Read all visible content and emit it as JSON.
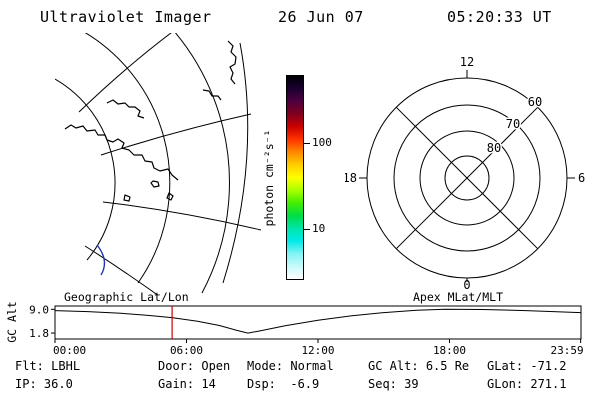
{
  "header": {
    "title": "Ultraviolet Imager",
    "date": "26 Jun 07",
    "time": "05:20:33 UT"
  },
  "geo_panel": {
    "caption": "Geographic Lat/Lon"
  },
  "polar_panel": {
    "caption": "Apex MLat/MLT",
    "mlt_labels": [
      "12",
      "18",
      "6",
      "0"
    ],
    "mlat_labels": [
      "60",
      "70",
      "80"
    ]
  },
  "status": {
    "row1": [
      {
        "label": "Flt:",
        "value": "LBHL"
      },
      {
        "label": "Door:",
        "value": "Open"
      },
      {
        "label": "Mode:",
        "value": "Normal"
      },
      {
        "label": "GC Alt:",
        "value": "6.5 Re"
      },
      {
        "label": "GLat:",
        "value": "-71.2"
      }
    ],
    "row2": [
      {
        "label": "IP:",
        "value": "36.0"
      },
      {
        "label": "Gain:",
        "value": "14"
      },
      {
        "label": "Dsp:",
        "value": "-6.9"
      },
      {
        "label": "Seq:",
        "value": "39"
      },
      {
        "label": "GLon:",
        "value": "271.1"
      }
    ]
  },
  "chart_data": [
    {
      "id": "gc_alt_timeline",
      "type": "line",
      "title": "Spacecraft geocentric altitude vs universal time",
      "ylabel": "GC Alt",
      "units": "Re",
      "ylim": [
        0,
        10
      ],
      "yticks": [
        {
          "label": "9.0",
          "value": 9.0
        },
        {
          "label": "1.8",
          "value": 1.8
        }
      ],
      "xticks": [
        {
          "label": "00:00",
          "hours": 0
        },
        {
          "label": "06:00",
          "hours": 6
        },
        {
          "label": "12:00",
          "hours": 12
        },
        {
          "label": "18:00",
          "hours": 18
        },
        {
          "label": "23:59",
          "hours": 23.983
        }
      ],
      "points": [
        [
          0,
          8.6
        ],
        [
          1.5,
          8.3
        ],
        [
          3,
          7.8
        ],
        [
          4.25,
          7.15
        ],
        [
          5.34,
          6.5
        ],
        [
          6.5,
          5.4
        ],
        [
          7.5,
          4.1
        ],
        [
          8.3,
          2.6
        ],
        [
          8.8,
          1.8
        ],
        [
          9.3,
          2.4
        ],
        [
          10.5,
          4.0
        ],
        [
          12,
          5.7
        ],
        [
          13.5,
          7.0
        ],
        [
          15,
          8.0
        ],
        [
          16.5,
          8.7
        ],
        [
          17.8,
          9.0
        ],
        [
          19.5,
          8.95
        ],
        [
          21.5,
          8.6
        ],
        [
          23.98,
          8.0
        ]
      ],
      "marker_time_hours": 5.343,
      "marker_color": "#cc0000",
      "grid": false,
      "legend": "none"
    },
    {
      "id": "uvi_colorbar",
      "type": "heatmap",
      "label": "photon cm⁻²s⁻¹",
      "scale": "log",
      "ticks": [
        {
          "label": "100",
          "frac_from_top": 0.33
        },
        {
          "label": "10",
          "frac_from_top": 0.75
        }
      ],
      "colors_top_to_bottom": [
        "#000005",
        "#1a0030",
        "#4d0040",
        "#800020",
        "#cc0000",
        "#ff3300",
        "#ff8800",
        "#ffcc00",
        "#ffff00",
        "#aaff00",
        "#44ee00",
        "#00dd44",
        "#00e6a8",
        "#00eaea",
        "#7ff4f4",
        "#c8fafa",
        "#ffffff"
      ]
    }
  ]
}
